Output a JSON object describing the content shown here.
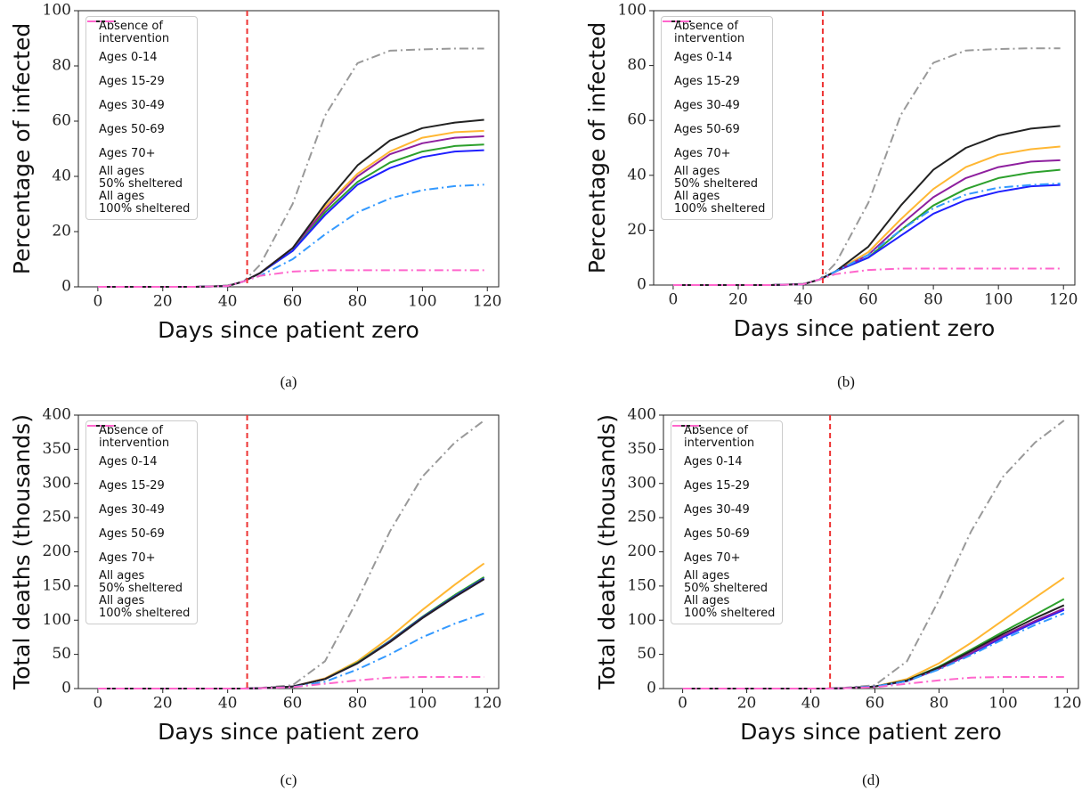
{
  "chart_data": [
    {
      "type": "line",
      "caption": "(a)",
      "xlabel": "Days since patient zero",
      "ylabel": "Percentage of infected",
      "xlim": [
        -6,
        123.5
      ],
      "ylim": [
        0,
        100
      ],
      "xticks": [
        0,
        20,
        40,
        60,
        80,
        100,
        120
      ],
      "yticks": [
        0,
        20,
        40,
        60,
        80,
        100
      ],
      "vline": 46,
      "vline_color": "#ee3333",
      "legend": "upper left",
      "x": [
        0,
        10,
        20,
        30,
        40,
        45,
        50,
        60,
        70,
        80,
        90,
        100,
        110,
        119
      ],
      "series": [
        {
          "name": "Absence of\nintervention",
          "color": "#999999",
          "linestyle": "dashdot",
          "values": [
            0,
            0,
            0,
            0,
            0.5,
            2,
            8,
            30,
            62,
            81,
            85.5,
            86,
            86.3,
            86.3
          ]
        },
        {
          "name": "Ages 0-14",
          "color": "#ffb733",
          "linestyle": "solid",
          "values": [
            0,
            0,
            0,
            0,
            0.3,
            2,
            5,
            14,
            29,
            41,
            49,
            54,
            56,
            56.5
          ]
        },
        {
          "name": "Ages 15-29",
          "color": "#2ca02c",
          "linestyle": "solid",
          "values": [
            0,
            0,
            0,
            0,
            0.3,
            2,
            5,
            13,
            27,
            38,
            45,
            49,
            51,
            51.5
          ]
        },
        {
          "name": "Ages 30-49",
          "color": "#1f1fff",
          "linestyle": "solid",
          "values": [
            0,
            0,
            0,
            0,
            0.3,
            2,
            5,
            13,
            26,
            37,
            43,
            47,
            49,
            49.5
          ]
        },
        {
          "name": "Ages 50-69",
          "color": "#8e1f9e",
          "linestyle": "solid",
          "values": [
            0,
            0,
            0,
            0,
            0.3,
            2,
            5,
            14,
            28,
            40,
            48,
            52,
            54,
            54.5
          ]
        },
        {
          "name": "Ages 70+",
          "color": "#222222",
          "linestyle": "solid",
          "values": [
            0,
            0,
            0,
            0,
            0.3,
            2,
            5,
            14,
            30,
            44,
            53,
            57.5,
            59.5,
            60.5
          ]
        },
        {
          "name": "All ages\n50% sheltered",
          "color": "#3399ff",
          "linestyle": "dashdot",
          "values": [
            0,
            0,
            0,
            0,
            0.3,
            2,
            4,
            10,
            19,
            27,
            32,
            35,
            36.5,
            37
          ]
        },
        {
          "name": "All ages\n100% sheltered",
          "color": "#ff66cc",
          "linestyle": "dashdot",
          "values": [
            0,
            0,
            0,
            0,
            0.3,
            2,
            4,
            5.5,
            6,
            6,
            6,
            6,
            6,
            6
          ]
        }
      ]
    },
    {
      "type": "line",
      "caption": "(b)",
      "xlabel": "Days since patient zero",
      "ylabel": "Percentage of infected",
      "xlim": [
        -6,
        123.5
      ],
      "ylim": [
        0,
        100
      ],
      "xticks": [
        0,
        20,
        40,
        60,
        80,
        100,
        120
      ],
      "yticks": [
        0,
        20,
        40,
        60,
        80,
        100
      ],
      "vline": 46,
      "vline_color": "#ee3333",
      "legend": "upper left",
      "x": [
        0,
        10,
        20,
        30,
        40,
        45,
        50,
        60,
        70,
        80,
        90,
        100,
        110,
        119
      ],
      "series": [
        {
          "name": "Absence of\nintervention",
          "color": "#999999",
          "linestyle": "dashdot",
          "values": [
            0,
            0,
            0,
            0,
            0.5,
            2,
            8,
            30,
            62,
            81,
            85.5,
            86,
            86.3,
            86.3
          ]
        },
        {
          "name": "Ages 0-14",
          "color": "#ffb733",
          "linestyle": "solid",
          "values": [
            0,
            0,
            0,
            0,
            0.3,
            2,
            5,
            12,
            24,
            35,
            43,
            47.5,
            49.5,
            50.5
          ]
        },
        {
          "name": "Ages 15-29",
          "color": "#2ca02c",
          "linestyle": "solid",
          "values": [
            0,
            0,
            0,
            0,
            0.3,
            2,
            5,
            10,
            20,
            29,
            35,
            39,
            41,
            42
          ]
        },
        {
          "name": "Ages 30-49",
          "color": "#1f1fff",
          "linestyle": "solid",
          "values": [
            0,
            0,
            0,
            0,
            0.3,
            2,
            5,
            10,
            18,
            26,
            31,
            34,
            36,
            36.5
          ]
        },
        {
          "name": "Ages 50-69",
          "color": "#8e1f9e",
          "linestyle": "solid",
          "values": [
            0,
            0,
            0,
            0,
            0.3,
            2,
            5,
            11,
            22,
            32,
            39,
            43,
            45,
            45.5
          ]
        },
        {
          "name": "Ages 70+",
          "color": "#222222",
          "linestyle": "solid",
          "values": [
            0,
            0,
            0,
            0,
            0.3,
            2,
            5,
            14,
            29,
            42,
            50,
            54.5,
            57,
            58
          ]
        },
        {
          "name": "All ages\n50% sheltered",
          "color": "#3399ff",
          "linestyle": "dashdot",
          "values": [
            0,
            0,
            0,
            0,
            0.3,
            2,
            5,
            11,
            20,
            28,
            33,
            35.5,
            36.5,
            37
          ]
        },
        {
          "name": "All ages\n100% sheltered",
          "color": "#ff66cc",
          "linestyle": "dashdot",
          "values": [
            0,
            0,
            0,
            0,
            0.3,
            2,
            4,
            5.5,
            6,
            6,
            6,
            6,
            6,
            6
          ]
        }
      ]
    },
    {
      "type": "line",
      "caption": "(c)",
      "xlabel": "Days since patient zero",
      "ylabel": "Total deaths (thousands)",
      "xlim": [
        -6,
        123.5
      ],
      "ylim": [
        0,
        400
      ],
      "xticks": [
        0,
        20,
        40,
        60,
        80,
        100,
        120
      ],
      "yticks": [
        0,
        50,
        100,
        150,
        200,
        250,
        300,
        350,
        400
      ],
      "vline": 46,
      "vline_color": "#ee3333",
      "legend": "upper left",
      "x": [
        0,
        10,
        20,
        30,
        40,
        45,
        50,
        60,
        70,
        80,
        90,
        100,
        110,
        119
      ],
      "series": [
        {
          "name": "Absence of\nintervention",
          "color": "#999999",
          "linestyle": "dashdot",
          "values": [
            0,
            0,
            0,
            0,
            0,
            0,
            1,
            5,
            40,
            130,
            230,
            310,
            360,
            392
          ]
        },
        {
          "name": "Ages 0-14",
          "color": "#ffb733",
          "linestyle": "solid",
          "values": [
            0,
            0,
            0,
            0,
            0,
            0,
            0.5,
            3,
            15,
            40,
            75,
            115,
            152,
            183
          ]
        },
        {
          "name": "Ages 15-29",
          "color": "#2ca02c",
          "linestyle": "solid",
          "values": [
            0,
            0,
            0,
            0,
            0,
            0,
            0.5,
            3,
            14,
            38,
            70,
            105,
            137,
            163
          ]
        },
        {
          "name": "Ages 30-49",
          "color": "#1f1fff",
          "linestyle": "solid",
          "values": [
            0,
            0,
            0,
            0,
            0,
            0,
            0.5,
            3,
            14,
            37,
            69,
            104,
            135,
            161
          ]
        },
        {
          "name": "Ages 50-69",
          "color": "#8e1f9e",
          "linestyle": "solid",
          "values": [
            0,
            0,
            0,
            0,
            0,
            0,
            0.5,
            3,
            14,
            37,
            68,
            103,
            134,
            160
          ]
        },
        {
          "name": "Ages 70+",
          "color": "#222222",
          "linestyle": "solid",
          "values": [
            0,
            0,
            0,
            0,
            0,
            0,
            0.5,
            3,
            14,
            37,
            68,
            103,
            134,
            160
          ]
        },
        {
          "name": "All ages\n50% sheltered",
          "color": "#3399ff",
          "linestyle": "dashdot",
          "values": [
            0,
            0,
            0,
            0,
            0,
            0,
            0.5,
            2,
            10,
            28,
            50,
            75,
            95,
            110
          ]
        },
        {
          "name": "All ages\n100% sheltered",
          "color": "#ff66cc",
          "linestyle": "dashdot",
          "values": [
            0,
            0,
            0,
            0,
            0,
            0,
            0.5,
            2,
            7,
            12,
            16,
            17,
            17,
            17
          ]
        }
      ]
    },
    {
      "type": "line",
      "caption": "(d)",
      "xlabel": "Days since patient zero",
      "ylabel": "Total deaths (thousands)",
      "xlim": [
        -6,
        123.5
      ],
      "ylim": [
        0,
        400
      ],
      "xticks": [
        0,
        20,
        40,
        60,
        80,
        100,
        120
      ],
      "yticks": [
        0,
        50,
        100,
        150,
        200,
        250,
        300,
        350,
        400
      ],
      "vline": 46,
      "vline_color": "#ee3333",
      "legend": "upper left",
      "x": [
        0,
        10,
        20,
        30,
        40,
        45,
        50,
        60,
        70,
        80,
        90,
        100,
        110,
        119
      ],
      "series": [
        {
          "name": "Absence of\nintervention",
          "color": "#999999",
          "linestyle": "dashdot",
          "values": [
            0,
            0,
            0,
            0,
            0,
            0,
            1,
            5,
            40,
            130,
            230,
            310,
            360,
            392
          ]
        },
        {
          "name": "Ages 0-14",
          "color": "#ffb733",
          "linestyle": "solid",
          "values": [
            0,
            0,
            0,
            0,
            0,
            0,
            0.5,
            3,
            14,
            37,
            67,
            100,
            133,
            162
          ]
        },
        {
          "name": "Ages 15-29",
          "color": "#2ca02c",
          "linestyle": "solid",
          "values": [
            0,
            0,
            0,
            0,
            0,
            0,
            0.5,
            3,
            12,
            32,
            57,
            83,
            108,
            131
          ]
        },
        {
          "name": "Ages 30-49",
          "color": "#1f1fff",
          "linestyle": "solid",
          "values": [
            0,
            0,
            0,
            0,
            0,
            0,
            0.5,
            3,
            11,
            29,
            51,
            75,
            97,
            115
          ]
        },
        {
          "name": "Ages 50-69",
          "color": "#8e1f9e",
          "linestyle": "solid",
          "values": [
            0,
            0,
            0,
            0,
            0,
            0,
            0.5,
            3,
            11,
            29,
            52,
            77,
            99,
            117
          ]
        },
        {
          "name": "Ages 70+",
          "color": "#222222",
          "linestyle": "solid",
          "values": [
            0,
            0,
            0,
            0,
            0,
            0,
            0.5,
            3,
            12,
            31,
            55,
            80,
            103,
            122
          ]
        },
        {
          "name": "All ages\n50% sheltered",
          "color": "#3399ff",
          "linestyle": "dashdot",
          "values": [
            0,
            0,
            0,
            0,
            0,
            0,
            0.5,
            3,
            11,
            28,
            49,
            72,
            93,
            110
          ]
        },
        {
          "name": "All ages\n100% sheltered",
          "color": "#ff66cc",
          "linestyle": "dashdot",
          "values": [
            0,
            0,
            0,
            0,
            0,
            0,
            0.5,
            2,
            7,
            12,
            16,
            17,
            17,
            17
          ]
        }
      ]
    }
  ]
}
